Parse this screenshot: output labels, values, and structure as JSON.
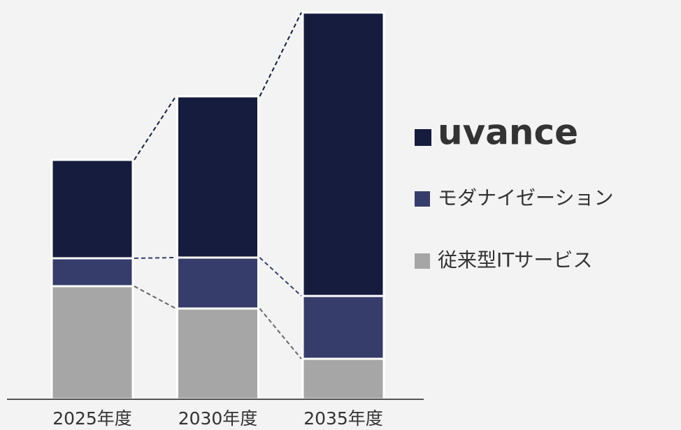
{
  "chart_data": {
    "type": "stacked_bar",
    "categories": [
      "2025年度",
      "2030年度",
      "2035年度"
    ],
    "series": [
      {
        "name": "従来型ITサービス",
        "color": "#a6a6a6",
        "values": [
          162,
          130,
          58
        ]
      },
      {
        "name": "モダナイゼーション",
        "color": "#363d6b",
        "values": [
          40,
          73,
          90
        ]
      },
      {
        "name": "uvance",
        "color": "#161c3e",
        "values": [
          141,
          231,
          406
        ]
      }
    ],
    "ylim": [
      0,
      560
    ]
  }
}
